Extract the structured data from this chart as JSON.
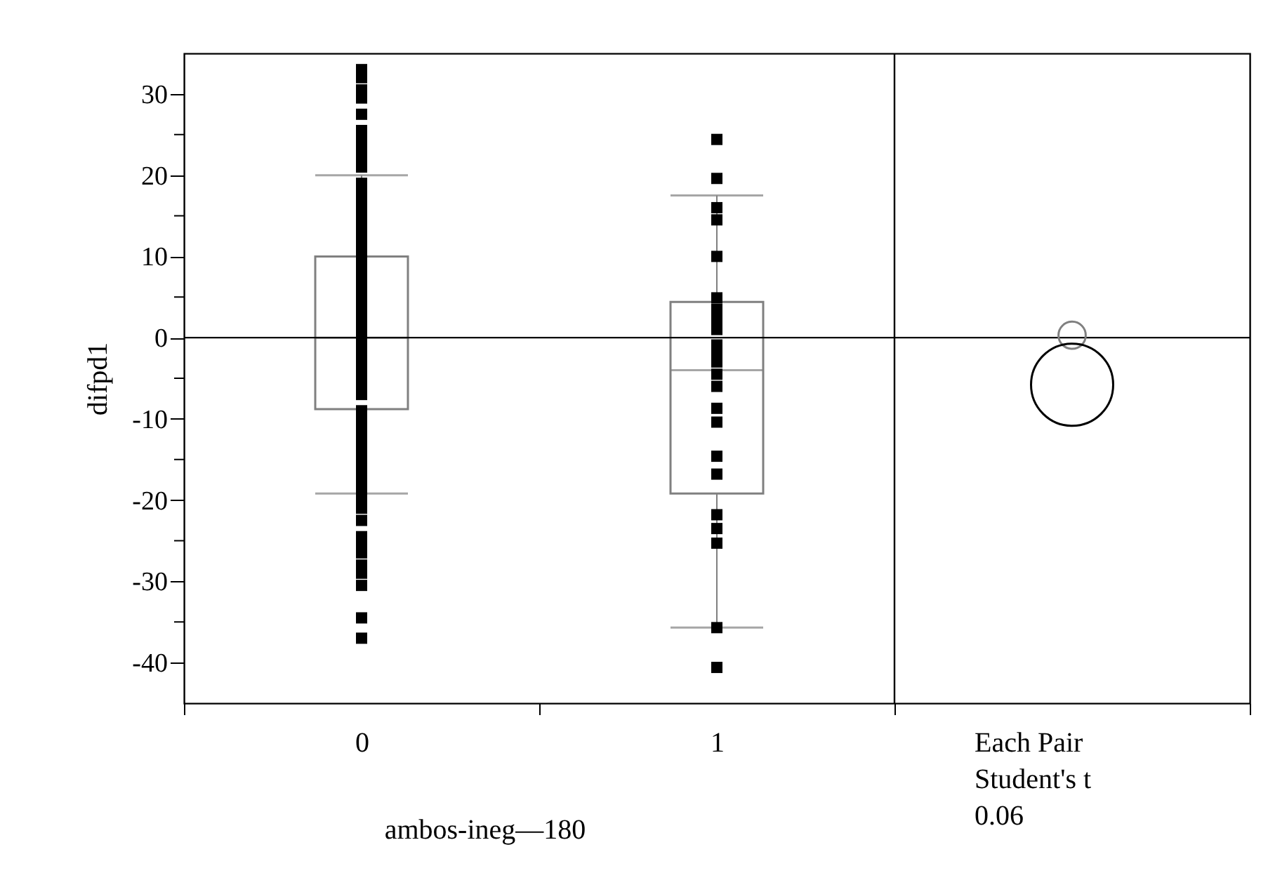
{
  "chart_data": {
    "type": "box",
    "xlabel": "ambos-ineg—180",
    "ylabel": "difpd1",
    "color": "#808080",
    "categories": [
      "0",
      "1",
      "Each Pair\nStudent's t\n0.06"
    ],
    "boxes": [
      {
        "low": -19.2,
        "q1": -8.8,
        "median": 0,
        "q3": 10,
        "high": 20
      },
      {
        "low": -35.7,
        "q1": -19.2,
        "median": -4,
        "q3": 4.4,
        "high": 17.5
      },
      null
    ],
    "ylim": [
      -45,
      35
    ],
    "yticks": [
      -40,
      {
        "value": -35,
        "label": null
      },
      -30,
      {
        "value": -25,
        "label": null
      },
      -20,
      {
        "value": -15,
        "label": null
      },
      -10,
      {
        "value": -5,
        "label": null
      },
      0,
      {
        "value": 5,
        "label": null
      },
      10,
      {
        "value": 15,
        "label": null
      },
      20,
      {
        "value": 25,
        "label": null
      },
      30
    ],
    "ref_lines": [
      {
        "axis": "y",
        "value": 0,
        "color": "#000000"
      },
      {
        "axis": "x",
        "value": "Each Pair\nStudent's t\n0.06",
        "color": "#000000"
      }
    ],
    "series": [
      {
        "type": "scatter",
        "color": "#000000",
        "marker": "square",
        "x": [
          "0",
          "0",
          "0",
          "0",
          "0",
          "0",
          "0",
          "0",
          "0",
          "0",
          "0",
          "0",
          "0",
          "0",
          "0",
          "0",
          "0",
          "0",
          "0",
          "0",
          "0",
          "0",
          "0",
          "0",
          "0",
          "0",
          "0",
          "0",
          "0",
          "0",
          "0",
          "0",
          "0",
          "0",
          "0",
          "0",
          "0",
          "0",
          "0",
          "0",
          "0",
          "0",
          "0",
          "0",
          "0",
          "0",
          "0",
          "0",
          "0",
          "0",
          "0",
          "0",
          "0",
          "0",
          "0",
          "0",
          "0",
          "0",
          "0",
          "0",
          "1",
          "1",
          "1",
          "1",
          "1",
          "1",
          "1",
          "1",
          "1",
          "1",
          "1",
          "1",
          "1",
          "1",
          "1",
          "1",
          "1",
          "1",
          "1",
          "1",
          "1",
          "1",
          "1"
        ],
        "values": [
          33,
          32,
          30.5,
          29.5,
          27.5,
          25.5,
          25,
          24,
          23,
          22,
          21,
          19,
          18,
          17,
          16,
          15,
          14,
          13,
          12,
          11,
          10,
          9,
          8,
          7,
          6,
          5,
          4,
          3,
          2,
          1,
          0,
          -1,
          -2,
          -3,
          -4,
          -5,
          -6,
          -7,
          -9,
          -10,
          -11,
          -12,
          -13,
          -14,
          -15,
          -16,
          -17,
          -18,
          -19,
          -20,
          -21,
          -22.5,
          -24.5,
          -25.5,
          -26.5,
          -28,
          -29,
          -30.5,
          -34.5,
          -37,
          24.4,
          19.6,
          16,
          14.5,
          10,
          4.9,
          3.5,
          2.2,
          1,
          -0.9,
          -3,
          -4.5,
          -6,
          -8.7,
          -10.4,
          -14.6,
          -16.8,
          -21.8,
          -23.5,
          -25.3,
          -35.7,
          -40.6,
          -2
        ]
      },
      {
        "type": "bubble",
        "x": [
          "Each Pair\nStudent's t\n0.06",
          "Each Pair\nStudent's t\n0.06"
        ],
        "values": [
          0.3,
          -5.8
        ],
        "sizes": [
          0.11,
          1
        ],
        "colors": [
          "#808080",
          "#000000"
        ]
      }
    ]
  }
}
